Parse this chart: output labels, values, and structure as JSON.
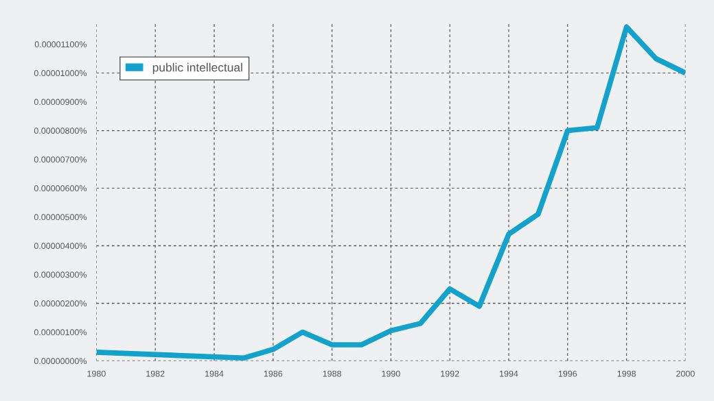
{
  "chart_data": {
    "type": "line",
    "x": [
      1980,
      1985,
      1986,
      1987,
      1988,
      1989,
      1990,
      1991,
      1992,
      1993,
      1994,
      1995,
      1996,
      1997,
      1998,
      1999,
      2000
    ],
    "series": [
      {
        "name": "public intellectual",
        "color": "#12a2cc",
        "values": [
          3e-07,
          1e-07,
          4e-07,
          1e-06,
          5.6e-07,
          5.6e-07,
          1.05e-06,
          1.3e-06,
          2.5e-06,
          1.9e-06,
          4.4e-06,
          5.1e-06,
          8e-06,
          8.1e-06,
          1.16e-05,
          1.05e-05,
          1e-05
        ]
      }
    ],
    "xlim": [
      1980,
      2000
    ],
    "xticks": [
      1980,
      1982,
      1984,
      1986,
      1988,
      1990,
      1992,
      1994,
      1996,
      1998,
      2000
    ],
    "ylim": [
      0,
      1.17e-05
    ],
    "yticks": [
      {
        "value": 0,
        "label": "0.00000000%"
      },
      {
        "value": 1e-06,
        "label": "0.00000100%"
      },
      {
        "value": 2e-06,
        "label": "0.00000200%"
      },
      {
        "value": 3e-06,
        "label": "0.00000300%"
      },
      {
        "value": 4e-06,
        "label": "0.00000400%"
      },
      {
        "value": 5e-06,
        "label": "0.00000500%"
      },
      {
        "value": 6e-06,
        "label": "0.00000600%"
      },
      {
        "value": 7e-06,
        "label": "0.00000700%"
      },
      {
        "value": 8e-06,
        "label": "0.00000800%"
      },
      {
        "value": 9e-06,
        "label": "0.00000900%"
      },
      {
        "value": 1e-05,
        "label": "0.00001000%"
      },
      {
        "value": 1.1e-05,
        "label": "0.00001100%"
      }
    ],
    "grid": true,
    "legend": "top left",
    "line_style": "solid",
    "marker": "none"
  }
}
